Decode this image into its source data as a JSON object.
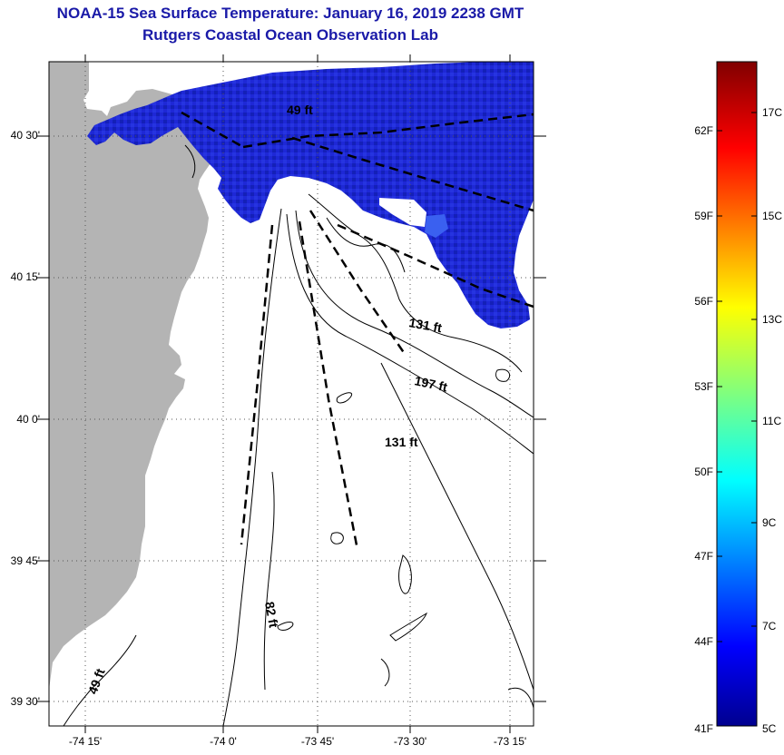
{
  "title_line1": "NOAA-15 Sea Surface Temperature:  January 16, 2019 2238 GMT",
  "title_line2": "Rutgers Coastal Ocean Observation Lab",
  "lat_labels": [
    "40 30'",
    "40 15'",
    "40 0'",
    "39 45'",
    "39 30'"
  ],
  "lon_labels": [
    "-74 15'",
    "-74 0'",
    "-73 45'",
    "-73 30'",
    "-73 15'"
  ],
  "depth_labels": [
    "49 ft",
    "131 ft",
    "197 ft",
    "131 ft",
    "82 ft",
    "49 ft"
  ],
  "colorbar": {
    "f_labels": [
      "62F",
      "59F",
      "56F",
      "53F",
      "50F",
      "47F",
      "44F",
      "41F"
    ],
    "c_labels": [
      "17C",
      "15C",
      "13C",
      "11C",
      "9C",
      "7C",
      "5C"
    ]
  },
  "colors": {
    "land": "#b4b4b4",
    "title": "#1a1aa8",
    "sst_cold": "#1e28d2"
  }
}
